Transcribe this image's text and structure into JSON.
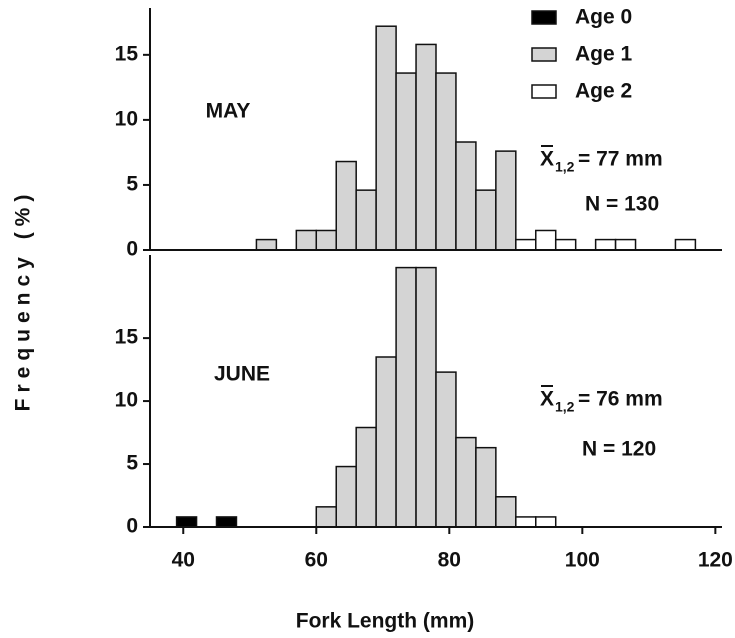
{
  "chart_data": [
    {
      "type": "histogram",
      "title": "MAY",
      "ylabel": "Frequency (%)",
      "mean_symbol": "X",
      "mean_subscript": "1,2",
      "mean_text": "= 77 mm",
      "n_text": "N = 130",
      "bins": [
        39,
        42,
        45,
        48,
        51,
        54,
        57,
        60,
        63,
        66,
        69,
        72,
        75,
        78,
        81,
        84,
        87,
        90,
        93,
        96,
        99,
        102,
        105,
        108,
        111,
        114,
        117
      ],
      "xlim": [
        35,
        121
      ],
      "ylim": [
        0,
        18.6
      ],
      "yticks": [
        0,
        5,
        10,
        15
      ],
      "series": [
        {
          "name": "Age 0",
          "color": "#000000",
          "values": [
            0,
            0,
            0,
            0,
            0,
            0,
            0,
            0,
            0,
            0,
            0,
            0,
            0,
            0,
            0,
            0,
            0,
            0,
            0,
            0,
            0,
            0,
            0,
            0,
            0,
            0
          ]
        },
        {
          "name": "Age 1",
          "color": "#d4d4d4",
          "values": [
            0,
            0,
            0,
            0,
            0.8,
            0,
            1.5,
            1.5,
            6.8,
            4.6,
            17.2,
            13.6,
            15.8,
            13.6,
            8.3,
            4.6,
            7.6,
            0,
            0,
            0,
            0,
            0,
            0,
            0,
            0,
            0
          ]
        },
        {
          "name": "Age 2",
          "color": "#ffffff",
          "values": [
            0,
            0,
            0,
            0,
            0,
            0,
            0,
            0,
            0,
            0,
            0,
            0,
            0,
            0,
            0,
            0,
            0,
            0.8,
            1.5,
            0.8,
            0,
            0.8,
            0.8,
            0,
            0,
            0.8
          ]
        }
      ]
    },
    {
      "type": "histogram",
      "title": "JUNE",
      "xlabel": "Fork Length (mm)",
      "mean_symbol": "X",
      "mean_subscript": "1,2",
      "mean_text": "= 76 mm",
      "n_text": "N = 120",
      "bins": [
        39,
        42,
        45,
        48,
        51,
        54,
        57,
        60,
        63,
        66,
        69,
        72,
        75,
        78,
        81,
        84,
        87,
        90,
        93,
        96,
        99,
        102,
        105,
        108,
        111,
        114,
        117
      ],
      "xlim": [
        35,
        121
      ],
      "xticks": [
        40,
        60,
        80,
        100,
        120
      ],
      "ylim": [
        0,
        21.6
      ],
      "yticks": [
        0,
        5,
        10,
        15
      ],
      "series": [
        {
          "color": "#000000",
          "values": [
            0.8,
            0,
            0.8,
            0,
            0,
            0,
            0,
            0,
            0,
            0,
            0,
            0,
            0,
            0,
            0,
            0,
            0,
            0,
            0,
            0,
            0,
            0,
            0,
            0,
            0,
            0
          ]
        },
        {
          "color": "#d4d4d4",
          "values": [
            0,
            0,
            0,
            0,
            0,
            0,
            0,
            1.6,
            4.8,
            7.9,
            13.5,
            20.6,
            20.6,
            12.3,
            7.1,
            6.3,
            2.4,
            0,
            0,
            0,
            0,
            0,
            0,
            0,
            0,
            0
          ]
        },
        {
          "color": "#ffffff",
          "values": [
            0,
            0,
            0,
            0,
            0,
            0,
            0,
            0,
            0,
            0,
            0,
            0,
            0,
            0,
            0,
            0,
            0,
            0.8,
            0.8,
            0,
            0,
            0,
            0,
            0,
            0,
            0
          ]
        }
      ]
    }
  ]
}
